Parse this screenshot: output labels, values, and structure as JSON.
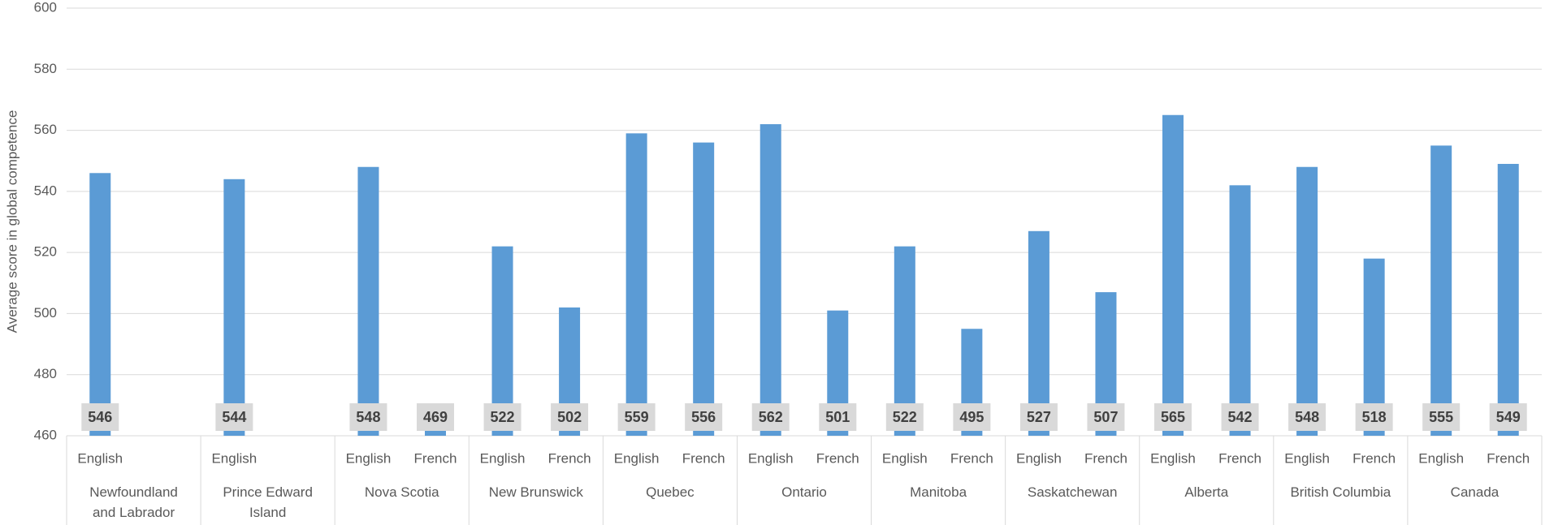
{
  "chart_data": {
    "type": "bar",
    "y_label": "Average score in global competence",
    "color": "#5b9bd5",
    "ylim": [
      460,
      600
    ],
    "yticks": [
      460,
      480,
      500,
      520,
      540,
      560,
      580,
      600
    ],
    "grid": true,
    "groups": [
      {
        "name": "Newfoundland and Labrador",
        "categories": [
          "English"
        ],
        "values": [
          546
        ]
      },
      {
        "name": "Prince Edward Island",
        "categories": [
          "English"
        ],
        "values": [
          544
        ]
      },
      {
        "name": "Nova Scotia",
        "categories": [
          "English",
          "French"
        ],
        "values": [
          548,
          469
        ]
      },
      {
        "name": "New Brunswick",
        "categories": [
          "English",
          "French"
        ],
        "values": [
          522,
          502
        ]
      },
      {
        "name": "Quebec",
        "categories": [
          "English",
          "French"
        ],
        "values": [
          559,
          556
        ]
      },
      {
        "name": "Ontario",
        "categories": [
          "English",
          "French"
        ],
        "values": [
          562,
          501
        ]
      },
      {
        "name": "Manitoba",
        "categories": [
          "English",
          "French"
        ],
        "values": [
          522,
          495
        ]
      },
      {
        "name": "Saskatchewan",
        "categories": [
          "English",
          "French"
        ],
        "values": [
          527,
          507
        ]
      },
      {
        "name": "Alberta",
        "categories": [
          "English",
          "French"
        ],
        "values": [
          565,
          542
        ]
      },
      {
        "name": "British Columbia",
        "categories": [
          "English",
          "French"
        ],
        "values": [
          548,
          518
        ]
      },
      {
        "name": "Canada",
        "categories": [
          "English",
          "French"
        ],
        "values": [
          555,
          549
        ]
      }
    ]
  }
}
